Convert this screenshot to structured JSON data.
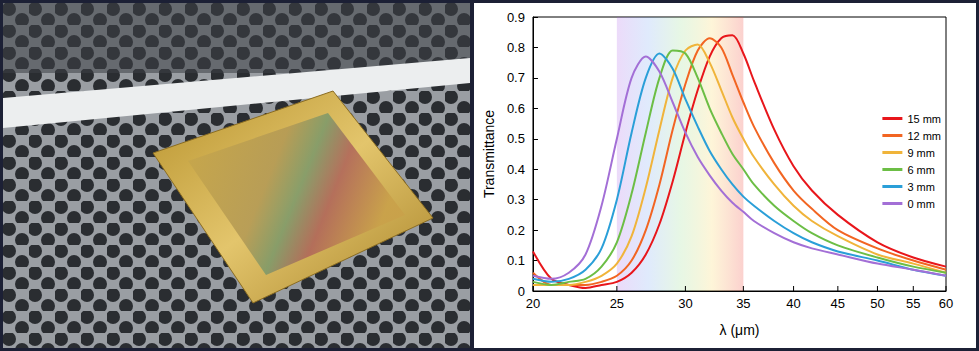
{
  "chart_data": {
    "type": "line",
    "x_label": "λ (μm)",
    "y_label": "Transmittance",
    "log": "x",
    "grid": false,
    "legend": "upper right",
    "xlim": [
      20,
      60
    ],
    "xticks": [
      20,
      25,
      30,
      35,
      40,
      45,
      50,
      55,
      60
    ],
    "ylim": [
      0,
      0.9
    ],
    "yticks": [
      0,
      0.1,
      0.2,
      0.3,
      0.4,
      0.5,
      0.6,
      0.7,
      0.8,
      0.9
    ],
    "highlight_range": [
      25,
      35
    ],
    "x": [
      20,
      21,
      22,
      23,
      24,
      25,
      26,
      27,
      28,
      29,
      30,
      31,
      32,
      33,
      34,
      35,
      36,
      38,
      40,
      42,
      45,
      50,
      55,
      60
    ],
    "series": [
      {
        "name": "15 mm",
        "color": "#e8161b",
        "values": [
          0.13,
          0.04,
          0.02,
          0.01,
          0.02,
          0.03,
          0.06,
          0.12,
          0.22,
          0.36,
          0.52,
          0.66,
          0.77,
          0.83,
          0.84,
          0.78,
          0.69,
          0.53,
          0.41,
          0.33,
          0.25,
          0.16,
          0.11,
          0.08
        ]
      },
      {
        "name": "12 mm",
        "color": "#f26522",
        "values": [
          0.06,
          0.02,
          0.02,
          0.02,
          0.03,
          0.05,
          0.1,
          0.2,
          0.35,
          0.53,
          0.68,
          0.79,
          0.83,
          0.8,
          0.71,
          0.62,
          0.54,
          0.42,
          0.33,
          0.27,
          0.2,
          0.14,
          0.1,
          0.07
        ]
      },
      {
        "name": "9 mm",
        "color": "#f0b43a",
        "values": [
          0.02,
          0.02,
          0.02,
          0.03,
          0.05,
          0.09,
          0.18,
          0.34,
          0.53,
          0.7,
          0.79,
          0.81,
          0.75,
          0.66,
          0.57,
          0.5,
          0.44,
          0.35,
          0.28,
          0.23,
          0.18,
          0.12,
          0.09,
          0.06
        ]
      },
      {
        "name": "6 mm",
        "color": "#6cbe45",
        "values": [
          0.03,
          0.02,
          0.03,
          0.04,
          0.08,
          0.16,
          0.32,
          0.52,
          0.7,
          0.79,
          0.78,
          0.7,
          0.6,
          0.52,
          0.45,
          0.4,
          0.35,
          0.28,
          0.23,
          0.19,
          0.15,
          0.11,
          0.08,
          0.06
        ]
      },
      {
        "name": "3 mm",
        "color": "#2a9fd8",
        "values": [
          0.04,
          0.03,
          0.04,
          0.07,
          0.14,
          0.3,
          0.52,
          0.7,
          0.78,
          0.73,
          0.63,
          0.54,
          0.46,
          0.4,
          0.35,
          0.31,
          0.28,
          0.23,
          0.19,
          0.16,
          0.13,
          0.1,
          0.07,
          0.05
        ]
      },
      {
        "name": "0 mm",
        "color": "#a36fd6",
        "values": [
          0.05,
          0.04,
          0.06,
          0.12,
          0.28,
          0.5,
          0.7,
          0.77,
          0.72,
          0.62,
          0.52,
          0.44,
          0.38,
          0.33,
          0.29,
          0.26,
          0.23,
          0.19,
          0.16,
          0.14,
          0.12,
          0.09,
          0.07,
          0.05
        ]
      }
    ]
  }
}
